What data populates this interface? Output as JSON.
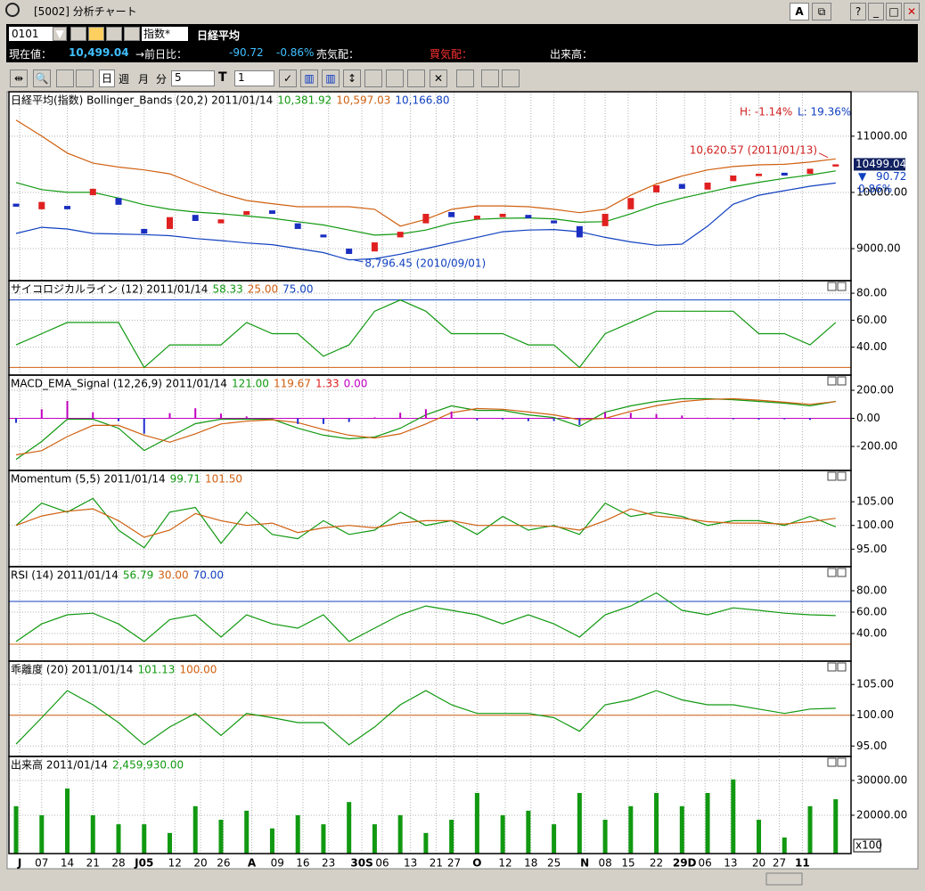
{
  "window": {
    "title": "[5002] 分析チャート",
    "button": "A"
  },
  "info": {
    "code": "0101",
    "index_type": "指数*",
    "name": "日経平均",
    "price_label": "現在値：",
    "price": "10,499.04",
    "change_label": "→前日比：",
    "change": "-90.72",
    "change_pct": "-0.86%",
    "ask_label": "売気配：",
    "bid_label": "買気配：",
    "volume_label": "出来高："
  },
  "toolbar": {
    "periods": [
      "日",
      "週",
      "月",
      "分"
    ],
    "minutes": "5",
    "t_label": "T",
    "t_value": "1"
  },
  "x_axis": {
    "xlim": [
      -0.28,
      32.6
    ],
    "grid": true,
    "xticks": [
      {
        "value": 0.14,
        "label": "J",
        "bold": true
      },
      {
        "value": 1.0,
        "label": "07"
      },
      {
        "value": 2.0,
        "label": "14"
      },
      {
        "value": 3.0,
        "label": "21"
      },
      {
        "value": 4.0,
        "label": "28"
      },
      {
        "value": 5.0,
        "label": "J05",
        "bold": true
      },
      {
        "value": 6.2,
        "label": "12"
      },
      {
        "value": 7.2,
        "label": "20"
      },
      {
        "value": 8.1,
        "label": "26"
      },
      {
        "value": 9.2,
        "label": "A",
        "bold": true
      },
      {
        "value": 10.2,
        "label": "09"
      },
      {
        "value": 11.2,
        "label": "16"
      },
      {
        "value": 12.2,
        "label": "23"
      },
      {
        "value": 13.5,
        "label": "30S",
        "bold": true
      },
      {
        "value": 14.3,
        "label": "06"
      },
      {
        "value": 15.4,
        "label": "13"
      },
      {
        "value": 16.4,
        "label": "21"
      },
      {
        "value": 17.1,
        "label": "27"
      },
      {
        "value": 18.0,
        "label": "O",
        "bold": true
      },
      {
        "value": 19.1,
        "label": "12"
      },
      {
        "value": 20.1,
        "label": "18"
      },
      {
        "value": 21.0,
        "label": "25"
      },
      {
        "value": 22.2,
        "label": "N",
        "bold": true
      },
      {
        "value": 23.0,
        "label": "08"
      },
      {
        "value": 23.9,
        "label": "15"
      },
      {
        "value": 25.0,
        "label": "22"
      },
      {
        "value": 26.1,
        "label": "29D",
        "bold": true
      },
      {
        "value": 26.9,
        "label": "06"
      },
      {
        "value": 27.9,
        "label": "13"
      },
      {
        "value": 29.0,
        "label": "20"
      },
      {
        "value": 29.8,
        "label": "27"
      },
      {
        "value": 30.7,
        "label": "11",
        "bold": true
      }
    ]
  },
  "chart_data": [
    {
      "type": "candlestick",
      "title": "日経平均(指数) Bollinger_Bands (20,2) 2011/01/14",
      "ylim": [
        8430,
        11790
      ],
      "yticks": [
        {
          "value": 9000,
          "label": "9000.00"
        },
        {
          "value": 10000,
          "label": "10000.00"
        },
        {
          "value": 11000,
          "label": "11000.00"
        }
      ],
      "up_color": "#e02020",
      "down_color": "#1a2ec0",
      "open": [
        9800,
        9700,
        9760,
        9950,
        9900,
        9350,
        9350,
        9600,
        9450,
        9600,
        9680,
        9450,
        9250,
        9000,
        8950,
        9200,
        9450,
        9650,
        9520,
        9560,
        9600,
        9500,
        9400,
        9400,
        9700,
        10000,
        10150,
        10050,
        10200,
        10290,
        10350,
        10330,
        10460
      ],
      "close": [
        9746,
        9830,
        9700,
        10064,
        9780,
        9270,
        9560,
        9492,
        9520,
        9667,
        9619,
        9350,
        9200,
        8905,
        9111,
        9300,
        9619,
        9560,
        9587,
        9620,
        9540,
        9450,
        9200,
        9619,
        9900,
        10127,
        10064,
        10175,
        10300,
        10333,
        10300,
        10420,
        10499.04
      ],
      "series": [
        {
          "legend_label": "10,381.92",
          "color": "#119911",
          "values": [
            10175,
            10050,
            10000,
            10000,
            9900,
            9780,
            9700,
            9650,
            9620,
            9580,
            9540,
            9480,
            9420,
            9330,
            9240,
            9260,
            9330,
            9450,
            9520,
            9540,
            9545,
            9530,
            9470,
            9480,
            9620,
            9780,
            9900,
            10000,
            10100,
            10180,
            10250,
            10310,
            10381.92
          ]
        },
        {
          "legend_label": "10,597.03",
          "color": "#d06010",
          "values": [
            11286,
            11000,
            10700,
            10520,
            10450,
            10400,
            10330,
            10150,
            9980,
            9857,
            9800,
            9746,
            9746,
            9746,
            9700,
            9400,
            9520,
            9700,
            9760,
            9760,
            9746,
            9700,
            9640,
            9700,
            9950,
            10150,
            10290,
            10400,
            10460,
            10490,
            10500,
            10540,
            10597.03
          ]
        },
        {
          "legend_label": "10,166.80",
          "color": "#1040c0",
          "values": [
            9270,
            9380,
            9350,
            9270,
            9260,
            9250,
            9230,
            9180,
            9143,
            9100,
            9070,
            9000,
            8930,
            8800,
            8820,
            8900,
            9000,
            9100,
            9200,
            9300,
            9330,
            9340,
            9300,
            9200,
            9120,
            9060,
            9080,
            9400,
            9790,
            9950,
            10030,
            10110,
            10166.8
          ]
        }
      ],
      "stats": [
        {
          "text": "H: -1.14%",
          "color": "#d02020"
        },
        {
          "text": "L: 19.36%",
          "color": "#1040c0"
        }
      ],
      "annotations": [
        {
          "text": "10,620.57 (2011/01/13)",
          "x": 31.7,
          "y": 10620.57,
          "color": "#d02020",
          "anchor": "end"
        },
        {
          "text": "8,796.45 (2010/09/01)",
          "x": 13.2,
          "y": 8796.45,
          "color": "#1040c0",
          "anchor": "start"
        }
      ],
      "last": 10499.04,
      "change": {
        "marker": "▼",
        "value": 90.72,
        "pct": "0.86%"
      }
    },
    {
      "type": "line",
      "title": "サイコロジカルライン (12) 2011/01/14",
      "ylim": [
        19.3,
        89.3
      ],
      "yticks": [
        {
          "value": 40,
          "label": "40.00"
        },
        {
          "value": 60,
          "label": "60.00"
        },
        {
          "value": 80,
          "label": "80.00"
        }
      ],
      "series": [
        {
          "legend_label": "58.33",
          "color": "#119911",
          "values": [
            41.67,
            50,
            58.33,
            58.33,
            58.33,
            25,
            41.67,
            41.67,
            41.67,
            58.33,
            50,
            50,
            33.33,
            41.67,
            66.67,
            75,
            66.67,
            50,
            50,
            50,
            41.67,
            41.67,
            25,
            50,
            58.33,
            66.67,
            66.67,
            66.67,
            66.67,
            50,
            50,
            41.67,
            58.33
          ]
        }
      ],
      "hlines": [
        {
          "value": 25,
          "label": "25.00",
          "color": "#d06010"
        },
        {
          "value": 75,
          "label": "75.00",
          "color": "#1040c0"
        }
      ]
    },
    {
      "type": "line",
      "title": "MACD_EMA_Signal (12,26,9) 2011/01/14",
      "ylim": [
        -371,
        308
      ],
      "yticks": [
        {
          "value": -200,
          "label": "-200.00"
        },
        {
          "value": 0,
          "label": "0.00"
        },
        {
          "value": 200,
          "label": "200.00"
        }
      ],
      "series": [
        {
          "legend_label": "121.00",
          "color": "#119911",
          "values": [
            -292,
            -165,
            -6,
            -6,
            -70,
            -229,
            -133,
            -38,
            -6,
            -6,
            -6,
            -70,
            -120,
            -146,
            -133,
            -70,
            25,
            89,
            57,
            57,
            25,
            6,
            -57,
            44,
            89,
            121,
            140,
            140,
            133,
            121,
            108,
            89,
            121
          ]
        },
        {
          "legend_label": "119.67",
          "color": "#d06010",
          "values": [
            -260,
            -230,
            -130,
            -50,
            -50,
            -120,
            -170,
            -110,
            -40,
            -20,
            -10,
            -30,
            -80,
            -120,
            -140,
            -110,
            -40,
            40,
            70,
            65,
            45,
            25,
            -10,
            0,
            50,
            90,
            120,
            135,
            140,
            130,
            115,
            100,
            119.67
          ]
        },
        {
          "legend_label": "1.33",
          "color": "#e02020",
          "kind": "bar",
          "pos_color": "#c000c0",
          "neg_color": "#2030d0",
          "values": [
            -32,
            65,
            124,
            44,
            -20,
            -109,
            37,
            72,
            34,
            14,
            4,
            -40,
            -40,
            -26,
            7,
            40,
            65,
            49,
            -13,
            -8,
            -20,
            -19,
            -47,
            44,
            39,
            31,
            20,
            5,
            -7,
            -9,
            -7,
            -11,
            1.33
          ]
        }
      ],
      "hlines": [
        {
          "value": 0,
          "label": "0.00",
          "color": "#c000c0"
        }
      ]
    },
    {
      "type": "line",
      "title": "Momentum (5,5) 2011/01/14",
      "ylim": [
        91.3,
        111.6
      ],
      "yticks": [
        {
          "value": 95,
          "label": "95.00"
        },
        {
          "value": 100,
          "label": "100.00"
        },
        {
          "value": 105,
          "label": "105.00"
        }
      ],
      "series": [
        {
          "legend_label": "99.71",
          "color": "#119911",
          "values": [
            100,
            104.7,
            102.8,
            105.7,
            99,
            95.3,
            102.8,
            103.8,
            96.2,
            102.8,
            98.1,
            97.2,
            101,
            98.1,
            99,
            102.8,
            100,
            101,
            98.1,
            101.9,
            99,
            100,
            98.1,
            104.7,
            101.9,
            102.8,
            101.9,
            100,
            101,
            101,
            100,
            101.9,
            99.71
          ]
        },
        {
          "legend_label": "101.50",
          "color": "#d06010",
          "values": [
            100,
            102,
            103,
            103.5,
            101,
            97.5,
            99,
            102.5,
            101,
            100,
            100.5,
            98.5,
            99.5,
            100,
            99.5,
            100.5,
            101,
            101,
            100,
            100,
            100,
            99.8,
            99,
            101,
            103.5,
            102,
            101.5,
            100.8,
            100.5,
            100.5,
            100.3,
            100.8,
            101.5
          ]
        }
      ]
    },
    {
      "type": "line",
      "title": "RSI (14) 2011/01/14",
      "ylim": [
        14.2,
        102.5
      ],
      "yticks": [
        {
          "value": 40,
          "label": "40.00"
        },
        {
          "value": 60,
          "label": "60.00"
        },
        {
          "value": 80,
          "label": "80.00"
        }
      ],
      "series": [
        {
          "legend_label": "56.79",
          "color": "#119911",
          "values": [
            32.5,
            49,
            57.5,
            59,
            49,
            32.5,
            53,
            57.5,
            36.7,
            57.5,
            49,
            45,
            57.5,
            32.5,
            45,
            57.5,
            65.8,
            61.7,
            57.5,
            49,
            57.5,
            49,
            36.7,
            57.5,
            65.8,
            78,
            61.7,
            57.5,
            64,
            61.7,
            59,
            57.5,
            56.79
          ]
        }
      ],
      "hlines": [
        {
          "value": 30,
          "label": "30.00",
          "color": "#d06010"
        },
        {
          "value": 70,
          "label": "70.00",
          "color": "#1040c0"
        }
      ]
    },
    {
      "type": "line",
      "title": "乖離度 (20) 2011/01/14",
      "ylim": [
        93.3,
        108.8
      ],
      "yticks": [
        {
          "value": 95,
          "label": "95.00"
        },
        {
          "value": 100,
          "label": "100.00"
        },
        {
          "value": 105,
          "label": "105.00"
        }
      ],
      "series": [
        {
          "legend_label": "101.13",
          "color": "#119911",
          "values": [
            95.3,
            99.6,
            104,
            101.7,
            98.8,
            95.2,
            98.1,
            100.3,
            96.7,
            100.3,
            99.6,
            98.8,
            98.8,
            95.2,
            98.1,
            101.7,
            104,
            101.7,
            100.3,
            100.3,
            100.3,
            99.6,
            97.4,
            101.7,
            102.5,
            104,
            102.5,
            101.7,
            101.7,
            101,
            100.3,
            101,
            101.13
          ]
        }
      ],
      "hlines": [
        {
          "value": 100,
          "label": "100.00",
          "color": "#d06010"
        }
      ]
    },
    {
      "type": "bar",
      "title": "出来高 2011/01/14",
      "ylim": [
        8970,
        36900
      ],
      "unit": "x100",
      "yticks": [
        {
          "value": 20000,
          "label": "20000.00"
        },
        {
          "value": 30000,
          "label": "30000.00"
        }
      ],
      "series": [
        {
          "legend_label": "2,459,930.00",
          "color": "#119911",
          "values": [
            22600,
            20000,
            27700,
            20000,
            17400,
            17400,
            14900,
            22600,
            18700,
            21300,
            16200,
            20000,
            17400,
            23800,
            17400,
            20000,
            14900,
            18700,
            26400,
            20000,
            21300,
            17400,
            26400,
            18700,
            22600,
            26400,
            22600,
            26400,
            30300,
            18700,
            13600,
            22600,
            24599.3
          ]
        }
      ]
    }
  ]
}
